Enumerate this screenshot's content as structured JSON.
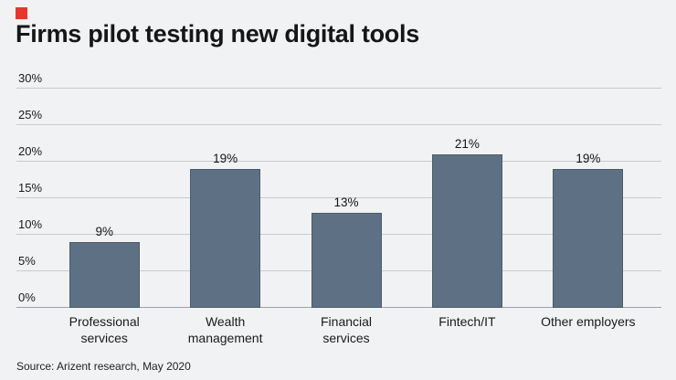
{
  "brand_color": "#e5382b",
  "header": {
    "title": "Firms pilot testing new digital tools"
  },
  "footer": {
    "source": "Source: Arizent research, May 2020"
  },
  "chart_data": {
    "type": "bar",
    "title": "Firms pilot testing new digital tools",
    "categories": [
      "Professional services",
      "Wealth management",
      "Financial services",
      "Fintech/IT",
      "Other employers"
    ],
    "category_lines": [
      [
        "Professional",
        "services"
      ],
      [
        "Wealth",
        "management"
      ],
      [
        "Financial",
        "services"
      ],
      [
        "Fintech/IT"
      ],
      [
        "Other employers"
      ]
    ],
    "values": [
      9,
      19,
      13,
      21,
      19
    ],
    "value_labels": [
      "9%",
      "19%",
      "13%",
      "21%",
      "19%"
    ],
    "xlabel": "",
    "ylabel": "",
    "ylim": [
      0,
      30
    ],
    "yticks": [
      0,
      5,
      10,
      15,
      20,
      25,
      30
    ],
    "ytick_labels": [
      "0%",
      "5%",
      "10%",
      "15%",
      "20%",
      "25%",
      "30%"
    ],
    "bar_color": "#5e7184",
    "grid": true,
    "legend": false,
    "background_color": "#f1f2f3",
    "source": "Source: Arizent research, May 2020"
  }
}
